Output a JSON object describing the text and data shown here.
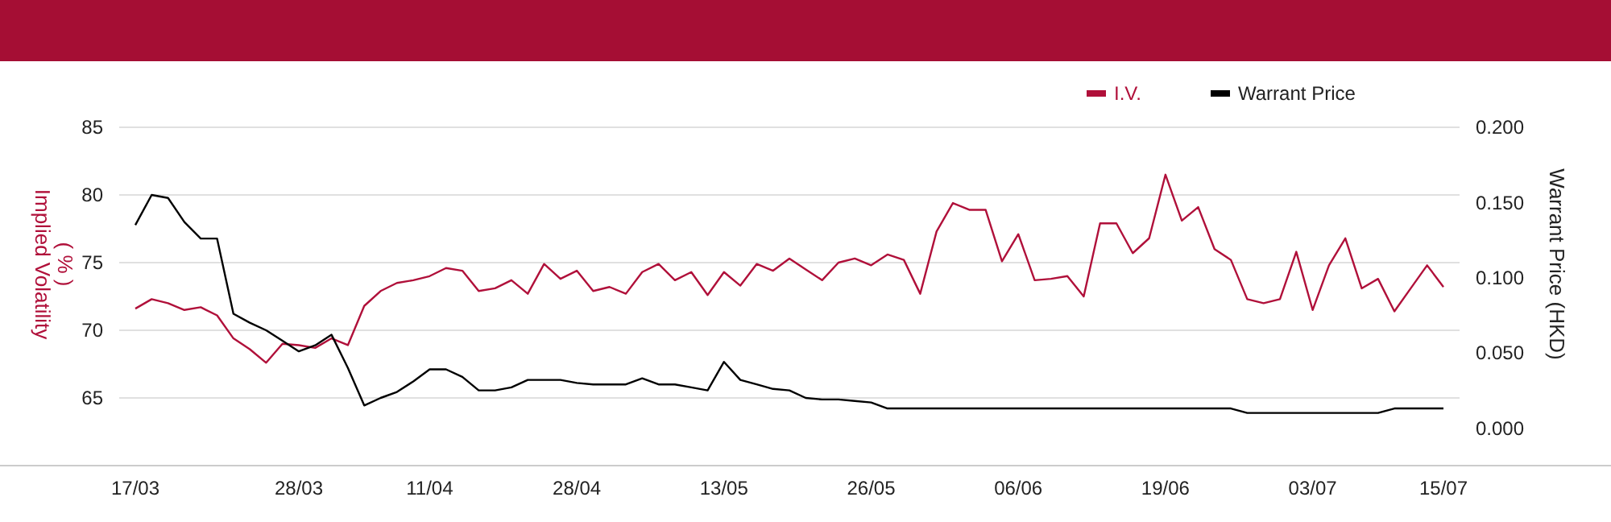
{
  "chart_data": {
    "type": "line",
    "ylabel": "Implied Volatility ( % )",
    "y2label": "Warrant Price (HKD)",
    "categories": [
      "17/03",
      null,
      null,
      null,
      null,
      null,
      null,
      null,
      null,
      null,
      "28/03",
      null,
      null,
      null,
      null,
      null,
      null,
      null,
      "11/04",
      null,
      null,
      null,
      null,
      null,
      null,
      null,
      null,
      "28/04",
      null,
      null,
      null,
      null,
      null,
      null,
      null,
      null,
      "13/05",
      null,
      null,
      null,
      null,
      null,
      null,
      null,
      null,
      "26/05",
      null,
      null,
      null,
      null,
      null,
      null,
      null,
      null,
      "06/06",
      null,
      null,
      null,
      null,
      null,
      null,
      null,
      null,
      "19/06",
      null,
      null,
      null,
      null,
      null,
      null,
      null,
      null,
      "03/07",
      null,
      null,
      null,
      null,
      null,
      null,
      null,
      "15/07"
    ],
    "series": [
      {
        "name": "I.V.",
        "color": "#b0103a",
        "values": [
          71.6,
          72.3,
          72.0,
          71.5,
          71.7,
          71.1,
          69.4,
          68.6,
          67.6,
          69.0,
          68.9,
          68.7,
          69.4,
          68.9,
          71.8,
          72.9,
          73.5,
          73.7,
          74.0,
          74.6,
          74.4,
          72.9,
          73.1,
          73.7,
          72.7,
          74.9,
          73.8,
          74.4,
          72.9,
          73.2,
          72.7,
          74.3,
          74.9,
          73.7,
          74.3,
          72.6,
          74.3,
          73.3,
          74.9,
          74.4,
          75.3,
          74.5,
          73.7,
          75.0,
          75.3,
          74.8,
          75.6,
          75.2,
          72.7,
          77.3,
          79.4,
          78.9,
          78.9,
          75.1,
          77.1,
          73.7,
          73.8,
          74.0,
          72.5,
          77.9,
          77.9,
          75.7,
          76.8,
          81.5,
          78.1,
          79.1,
          76.0,
          75.2,
          72.3,
          72.0,
          72.3,
          75.8,
          71.5,
          74.8,
          76.8,
          73.1,
          73.8,
          71.4,
          73.1,
          74.8,
          73.2
        ]
      },
      {
        "name": "Warrant Price",
        "color": "#000000",
        "axis": "y2",
        "values": [
          0.135,
          0.155,
          0.153,
          0.137,
          0.126,
          0.126,
          0.076,
          0.07,
          0.065,
          0.058,
          0.051,
          0.055,
          0.062,
          0.04,
          0.015,
          0.02,
          0.024,
          0.031,
          0.039,
          0.039,
          0.034,
          0.025,
          0.025,
          0.027,
          0.032,
          0.032,
          0.032,
          0.03,
          0.029,
          0.029,
          0.029,
          0.033,
          0.029,
          0.029,
          0.027,
          0.025,
          0.044,
          0.032,
          0.029,
          0.026,
          0.025,
          0.02,
          0.019,
          0.019,
          0.018,
          0.017,
          0.013,
          0.013,
          0.013,
          0.013,
          0.013,
          0.013,
          0.013,
          0.013,
          0.013,
          0.013,
          0.013,
          0.013,
          0.013,
          0.013,
          0.013,
          0.013,
          0.013,
          0.013,
          0.013,
          0.013,
          0.013,
          0.013,
          0.01,
          0.01,
          0.01,
          0.01,
          0.01,
          0.01,
          0.01,
          0.01,
          0.01,
          0.013,
          0.013,
          0.013,
          0.013
        ]
      }
    ],
    "ylim": [
      60,
      85
    ],
    "yticks": [
      65,
      70,
      75,
      80,
      85
    ],
    "y2lim": [
      -0.025,
      0.2
    ],
    "y2ticks": [
      {
        "value": 0,
        "label": "0.000"
      },
      {
        "value": 0.05,
        "label": "0.050"
      },
      {
        "value": 0.1,
        "label": "0.100"
      },
      {
        "value": 0.15,
        "label": "0.150"
      },
      {
        "value": 0.2,
        "label": "0.200"
      }
    ],
    "grid": "y",
    "legend": "top right",
    "marker": "none",
    "line_style": "solid"
  }
}
